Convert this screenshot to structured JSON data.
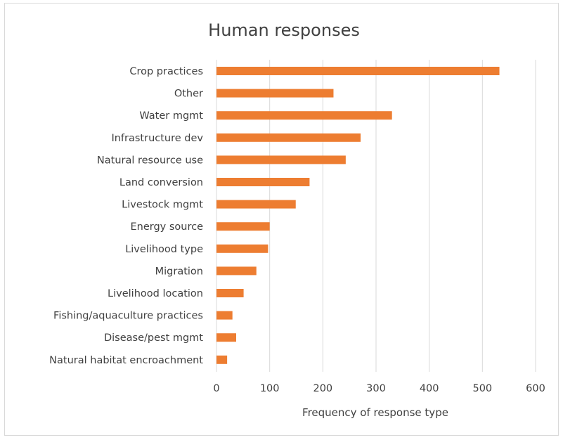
{
  "chart_data": {
    "type": "bar",
    "orientation": "horizontal",
    "title": "Human responses",
    "xlabel": "Frequency of response type",
    "ylabel": "",
    "categories": [
      "Crop practices",
      "Other",
      "Water mgmt",
      "Infrastructure dev",
      "Natural resource use",
      "Land conversion",
      "Livestock mgmt",
      "Energy source",
      "Livelihood type",
      "Migration",
      "Livelihood location",
      "Fishing/aquaculture practices",
      "Disease/pest mgmt",
      "Natural habitat encroachment"
    ],
    "values": [
      532,
      220,
      330,
      271,
      243,
      175,
      149,
      100,
      97,
      75,
      51,
      30,
      37,
      20
    ],
    "xlim": [
      0,
      600
    ],
    "xticks": [
      0,
      100,
      200,
      300,
      400,
      500,
      600
    ],
    "grid": true,
    "legend": "none",
    "bar_color": "#ed7d31"
  }
}
